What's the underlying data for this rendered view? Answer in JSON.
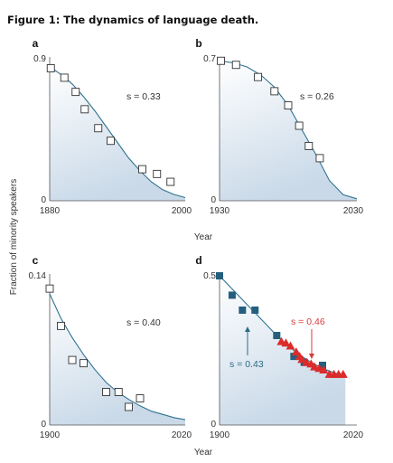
{
  "figure_title": "Figure 1: The dynamics of language death.",
  "y_axis_title": "Fraction of minority speakers",
  "x_axis_title": "Year",
  "colors": {
    "curve": "#2e7391",
    "open_marker": "#ffffff",
    "blue_marker": "#245f7e",
    "red_marker": "#dc2b2b",
    "panel_fill": "#c9d9e8"
  },
  "chart_data": [
    {
      "panel": "a",
      "type": "scatter",
      "annotation": "s = 0.33",
      "xlim": [
        1880,
        2000
      ],
      "ylim": [
        0,
        0.9
      ],
      "x_tick_labels": [
        "1880",
        "2000"
      ],
      "y_tick_labels": [
        "0.9",
        "0"
      ],
      "series": [
        {
          "marker": "open-square",
          "points": [
            [
              1881,
              0.84
            ],
            [
              1893,
              0.78
            ],
            [
              1903,
              0.69
            ],
            [
              1911,
              0.58
            ],
            [
              1923,
              0.46
            ],
            [
              1934,
              0.38
            ],
            [
              1962,
              0.2
            ],
            [
              1975,
              0.17
            ],
            [
              1987,
              0.12
            ]
          ]
        }
      ],
      "curve": [
        [
          1880,
          0.85
        ],
        [
          1890,
          0.8
        ],
        [
          1900,
          0.74
        ],
        [
          1910,
          0.66
        ],
        [
          1920,
          0.57
        ],
        [
          1930,
          0.47
        ],
        [
          1940,
          0.37
        ],
        [
          1950,
          0.27
        ],
        [
          1960,
          0.19
        ],
        [
          1970,
          0.12
        ],
        [
          1980,
          0.07
        ],
        [
          1990,
          0.04
        ],
        [
          2000,
          0.02
        ]
      ]
    },
    {
      "panel": "b",
      "type": "scatter",
      "annotation": "s = 0.26",
      "xlim": [
        1930,
        2030
      ],
      "ylim": [
        0,
        0.7
      ],
      "x_tick_labels": [
        "1930",
        "2030"
      ],
      "y_tick_labels": [
        "0.7",
        "0"
      ],
      "series": [
        {
          "marker": "open-square",
          "points": [
            [
              1931,
              0.69
            ],
            [
              1942,
              0.67
            ],
            [
              1958,
              0.61
            ],
            [
              1970,
              0.54
            ],
            [
              1980,
              0.47
            ],
            [
              1988,
              0.37
            ],
            [
              1995,
              0.27
            ],
            [
              2003,
              0.21
            ]
          ]
        }
      ],
      "curve": [
        [
          1930,
          0.69
        ],
        [
          1940,
          0.68
        ],
        [
          1950,
          0.66
        ],
        [
          1960,
          0.62
        ],
        [
          1970,
          0.56
        ],
        [
          1980,
          0.47
        ],
        [
          1990,
          0.35
        ],
        [
          2000,
          0.23
        ],
        [
          2010,
          0.1
        ],
        [
          2020,
          0.03
        ],
        [
          2030,
          0.01
        ]
      ]
    },
    {
      "panel": "c",
      "type": "scatter",
      "annotation": "s = 0.40",
      "xlim": [
        1900,
        2020
      ],
      "ylim": [
        0,
        0.14
      ],
      "x_tick_labels": [
        "1900",
        "2020"
      ],
      "y_tick_labels": [
        "0.14",
        "0"
      ],
      "series": [
        {
          "marker": "open-square",
          "points": [
            [
              1900,
              0.128
            ],
            [
              1910,
              0.093
            ],
            [
              1920,
              0.061
            ],
            [
              1930,
              0.058
            ],
            [
              1950,
              0.031
            ],
            [
              1961,
              0.031
            ],
            [
              1970,
              0.017
            ],
            [
              1980,
              0.025
            ]
          ]
        }
      ],
      "curve": [
        [
          1900,
          0.123
        ],
        [
          1910,
          0.1
        ],
        [
          1920,
          0.082
        ],
        [
          1930,
          0.066
        ],
        [
          1940,
          0.052
        ],
        [
          1950,
          0.04
        ],
        [
          1960,
          0.031
        ],
        [
          1970,
          0.024
        ],
        [
          1980,
          0.018
        ],
        [
          1990,
          0.013
        ],
        [
          2000,
          0.01
        ],
        [
          2010,
          0.007
        ],
        [
          2020,
          0.005
        ]
      ]
    },
    {
      "panel": "d",
      "type": "scatter",
      "xlim": [
        1900,
        2020
      ],
      "ylim": [
        0,
        0.5
      ],
      "x_tick_labels": [
        "1900",
        "2020"
      ],
      "y_tick_labels": [
        "0.5",
        "0"
      ],
      "series": [
        {
          "marker": "filled-square",
          "label": "s = 0.43",
          "points": [
            [
              1900,
              0.5
            ],
            [
              1911,
              0.435
            ],
            [
              1920,
              0.385
            ],
            [
              1931,
              0.385
            ],
            [
              1950,
              0.3
            ],
            [
              1965,
              0.23
            ],
            [
              1974,
              0.21
            ],
            [
              1990,
              0.2
            ]
          ]
        },
        {
          "marker": "filled-triangle",
          "label": "s = 0.46",
          "points": [
            [
              1954,
              0.28
            ],
            [
              1958,
              0.275
            ],
            [
              1962,
              0.265
            ],
            [
              1967,
              0.245
            ],
            [
              1970,
              0.23
            ],
            [
              1972,
              0.22
            ],
            [
              1976,
              0.21
            ],
            [
              1980,
              0.205
            ],
            [
              1983,
              0.195
            ],
            [
              1987,
              0.19
            ],
            [
              1991,
              0.185
            ],
            [
              1996,
              0.17
            ],
            [
              2000,
              0.17
            ],
            [
              2004,
              0.17
            ],
            [
              2008,
              0.17
            ]
          ]
        }
      ],
      "curve": [
        [
          1900,
          0.5
        ],
        [
          1910,
          0.46
        ],
        [
          1920,
          0.42
        ],
        [
          1930,
          0.38
        ],
        [
          1940,
          0.34
        ],
        [
          1950,
          0.3
        ],
        [
          1960,
          0.265
        ],
        [
          1970,
          0.235
        ],
        [
          1980,
          0.21
        ],
        [
          1990,
          0.19
        ],
        [
          2000,
          0.175
        ],
        [
          2010,
          0.165
        ]
      ]
    }
  ]
}
